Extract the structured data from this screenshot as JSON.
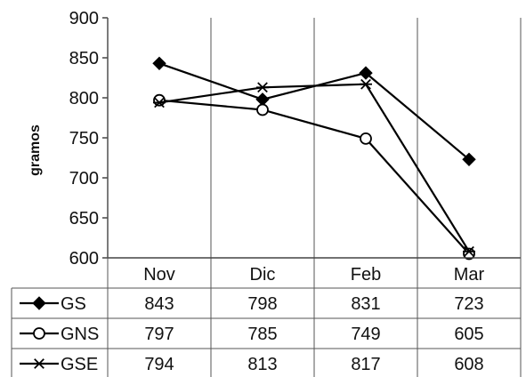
{
  "chart_data": {
    "type": "line",
    "title": "",
    "xlabel": "",
    "ylabel": "gramos",
    "ylim": [
      600,
      900
    ],
    "yticks": [
      "900",
      "850",
      "800",
      "750",
      "700",
      "650",
      "600"
    ],
    "categories": [
      "Nov",
      "Dic",
      "Feb",
      "Mar"
    ],
    "grid": "vertical category dividers",
    "legend": "data table below chart",
    "series": [
      {
        "name": "GS",
        "marker": "diamond",
        "values": [
          843,
          798,
          831,
          723
        ]
      },
      {
        "name": "GNS",
        "marker": "open-circle",
        "values": [
          797,
          785,
          749,
          605
        ]
      },
      {
        "name": "GSE",
        "marker": "asterisk",
        "values": [
          794,
          813,
          817,
          608
        ]
      }
    ],
    "table": {
      "rows": [
        {
          "label": "GS",
          "values": [
            "843",
            "798",
            "831",
            "723"
          ]
        },
        {
          "label": "GNS",
          "values": [
            "797",
            "785",
            "749",
            "605"
          ]
        },
        {
          "label": "GSE",
          "values": [
            "794",
            "813",
            "817",
            "608"
          ]
        }
      ]
    },
    "colors": {
      "line": "#000000",
      "axis": "#444444",
      "background": "#ffffff"
    }
  }
}
